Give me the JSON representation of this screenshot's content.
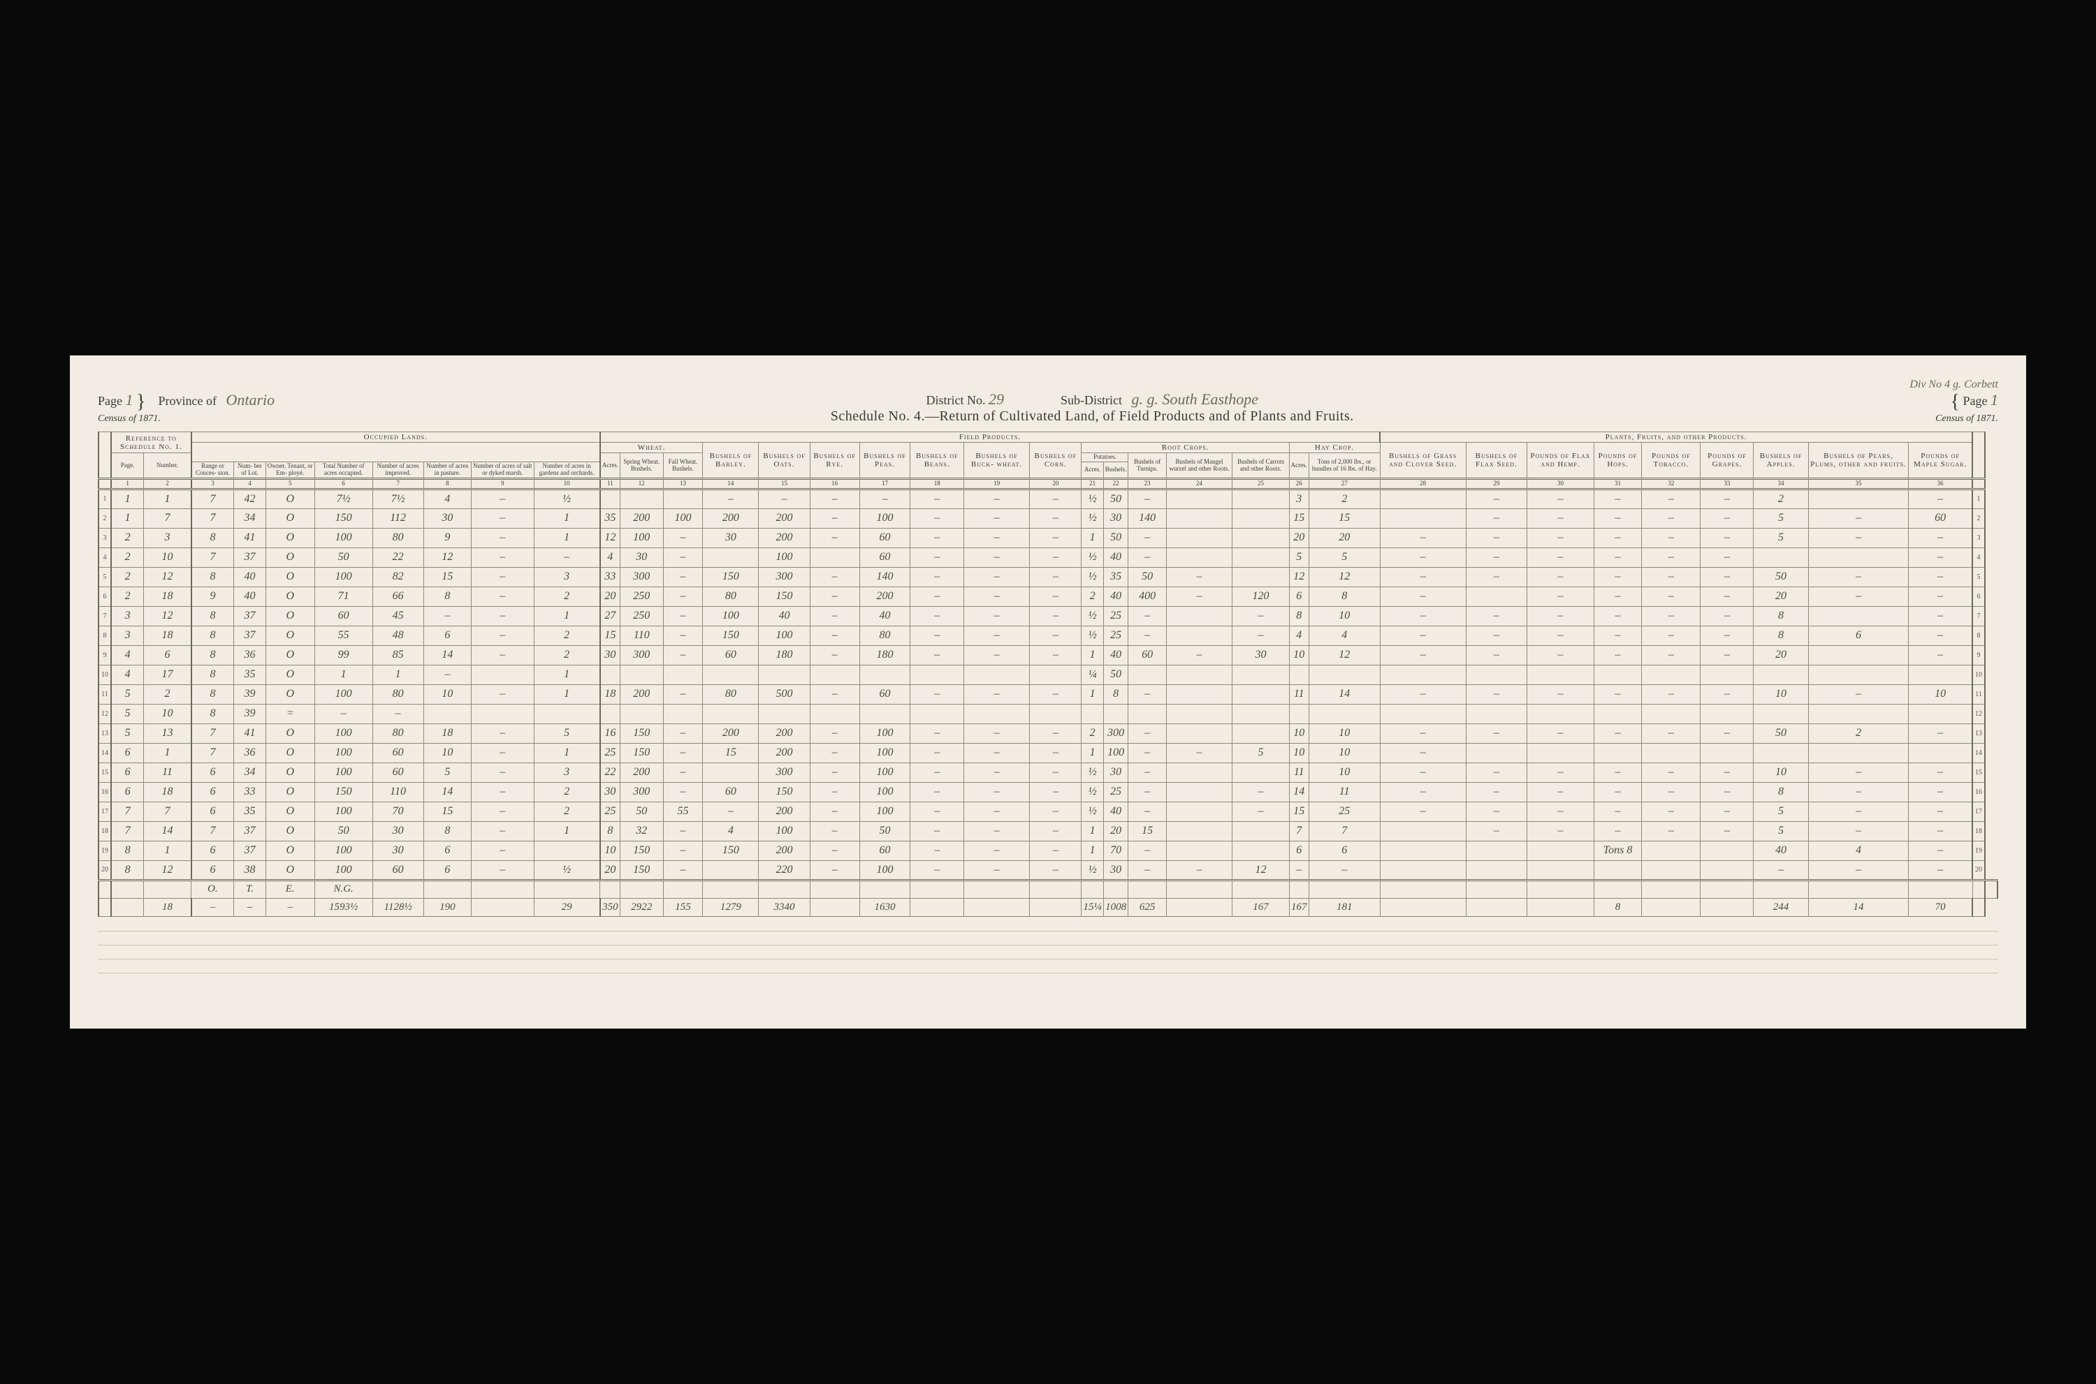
{
  "header": {
    "page_left_label": "Page",
    "page_left_value": "1",
    "census_left": "Census of 1871.",
    "province_label": "Province of",
    "province_value": "Ontario",
    "district_label": "District No.",
    "district_value": "29",
    "subdistrict_label": "Sub-District",
    "subdistrict_value": "g. g. South Easthope",
    "subdistrict_value2": "Div No 4  g. Corbett",
    "schedule_title": "Schedule No. 4.—Return of Cultivated Land, of Field Products and of Plants and Fruits.",
    "page_right_label": "Page",
    "page_right_value": "1",
    "census_right": "Census of 1871."
  },
  "group_headers": {
    "ref": "Reference to Schedule No. 1.",
    "occupied": "Occupied Lands.",
    "field": "Field Products.",
    "plants": "Plants, Fruits, and other Products.",
    "wheat": "Wheat.",
    "root": "Root Crops.",
    "hay": "Hay Crop.",
    "potatoes": "Potatoes."
  },
  "col_headers": [
    "Page.",
    "Number.",
    "Range or Conces- sion.",
    "Num- ber of Lot.",
    "Owner, Tenant, or Em- ployé.",
    "Total Number of acres occupied.",
    "Number of acres improved.",
    "Number of acres in pasture.",
    "Number of acres of salt or dyked marsh.",
    "Number of acres in gardens and orchards.",
    "Acres.",
    "Spring Wheat. Bushels.",
    "Fall Wheat. Bushels.",
    "Bushels of Barley.",
    "Bushels of Oats.",
    "Bushels of Rye.",
    "Bushels of Peas.",
    "Bushels of Beans.",
    "Bushels of Buck- wheat.",
    "Bushels of Corn.",
    "Acres.",
    "Bushels.",
    "Bushels of Turnips.",
    "Bushels of Mangel wurzel and other Roots.",
    "Bushels of Carrots and other Roots.",
    "Acres.",
    "Tons of 2,000 lbs., or bundles of 16 lbs. of Hay.",
    "Bushels of Grass and Clover Seed.",
    "Bushels of Flax Seed.",
    "Pounds of Flax and Hemp.",
    "Pounds of Hops.",
    "Pounds of Tobacco.",
    "Pounds of Grapes.",
    "Bushels of Apples.",
    "Bushels of Pears, Plums, other and fruits.",
    "Pounds of Maple Sugar."
  ],
  "col_numbers": [
    "1",
    "2",
    "3",
    "4",
    "5",
    "6",
    "7",
    "8",
    "9",
    "10",
    "11",
    "12",
    "13",
    "14",
    "15",
    "16",
    "17",
    "18",
    "19",
    "20",
    "21",
    "22",
    "23",
    "24",
    "25",
    "26",
    "27",
    "28",
    "29",
    "30",
    "31",
    "32",
    "33",
    "34",
    "35",
    "36"
  ],
  "rows": [
    [
      "1",
      "1",
      "7",
      "42",
      "O",
      "7½",
      "7½",
      "4",
      "–",
      "½",
      "",
      "",
      "",
      "–",
      "–",
      "–",
      "–",
      "–",
      "–",
      "–",
      "½",
      "50",
      "–",
      "",
      "",
      "3",
      "2",
      "",
      "–",
      "–",
      "–",
      "–",
      "–",
      "2",
      "",
      "–"
    ],
    [
      "1",
      "7",
      "7",
      "34",
      "O",
      "150",
      "112",
      "30",
      "–",
      "1",
      "35",
      "200",
      "100",
      "200",
      "200",
      "–",
      "100",
      "–",
      "–",
      "–",
      "½",
      "30",
      "140",
      "",
      "",
      "15",
      "15",
      "",
      "–",
      "–",
      "–",
      "–",
      "–",
      "5",
      "–",
      "60"
    ],
    [
      "2",
      "3",
      "8",
      "41",
      "O",
      "100",
      "80",
      "9",
      "–",
      "1",
      "12",
      "100",
      "–",
      "30",
      "200",
      "–",
      "60",
      "–",
      "–",
      "–",
      "1",
      "50",
      "–",
      "",
      "",
      "20",
      "20",
      "–",
      "–",
      "–",
      "–",
      "–",
      "–",
      "5",
      "–",
      "–"
    ],
    [
      "2",
      "10",
      "7",
      "37",
      "O",
      "50",
      "22",
      "12",
      "–",
      "–",
      "4",
      "30",
      "–",
      "",
      "100",
      "",
      "60",
      "–",
      "–",
      "–",
      "½",
      "40",
      "–",
      "",
      "",
      "5",
      "5",
      "–",
      "–",
      "–",
      "–",
      "–",
      "–",
      "",
      "",
      "–"
    ],
    [
      "2",
      "12",
      "8",
      "40",
      "O",
      "100",
      "82",
      "15",
      "–",
      "3",
      "33",
      "300",
      "–",
      "150",
      "300",
      "–",
      "140",
      "–",
      "–",
      "–",
      "½",
      "35",
      "50",
      "–",
      "",
      "12",
      "12",
      "–",
      "–",
      "–",
      "–",
      "–",
      "–",
      "50",
      "–",
      "–"
    ],
    [
      "2",
      "18",
      "9",
      "40",
      "O",
      "71",
      "66",
      "8",
      "–",
      "2",
      "20",
      "250",
      "–",
      "80",
      "150",
      "–",
      "200",
      "–",
      "–",
      "–",
      "2",
      "40",
      "400",
      "–",
      "120",
      "6",
      "8",
      "–",
      "",
      "–",
      "–",
      "–",
      "–",
      "20",
      "–",
      "–"
    ],
    [
      "3",
      "12",
      "8",
      "37",
      "O",
      "60",
      "45",
      "–",
      "–",
      "1",
      "27",
      "250",
      "–",
      "100",
      "40",
      "–",
      "40",
      "–",
      "–",
      "–",
      "½",
      "25",
      "–",
      "",
      "–",
      "8",
      "10",
      "–",
      "–",
      "–",
      "–",
      "–",
      "–",
      "8",
      "",
      "–"
    ],
    [
      "3",
      "18",
      "8",
      "37",
      "O",
      "55",
      "48",
      "6",
      "–",
      "2",
      "15",
      "110",
      "–",
      "150",
      "100",
      "–",
      "80",
      "–",
      "–",
      "–",
      "½",
      "25",
      "–",
      "",
      "–",
      "4",
      "4",
      "–",
      "–",
      "–",
      "–",
      "–",
      "–",
      "8",
      "6",
      "–"
    ],
    [
      "4",
      "6",
      "8",
      "36",
      "O",
      "99",
      "85",
      "14",
      "–",
      "2",
      "30",
      "300",
      "–",
      "60",
      "180",
      "–",
      "180",
      "–",
      "–",
      "–",
      "1",
      "40",
      "60",
      "–",
      "30",
      "10",
      "12",
      "–",
      "–",
      "–",
      "–",
      "–",
      "–",
      "20",
      "",
      "–"
    ],
    [
      "4",
      "17",
      "8",
      "35",
      "O",
      "1",
      "1",
      "–",
      "",
      "1",
      "",
      "",
      "",
      "",
      "",
      "",
      "",
      "",
      "",
      "",
      "¼",
      "50",
      "",
      "",
      "",
      "",
      "",
      "",
      "",
      "",
      "",
      "",
      "",
      "",
      "",
      ""
    ],
    [
      "5",
      "2",
      "8",
      "39",
      "O",
      "100",
      "80",
      "10",
      "–",
      "1",
      "18",
      "200",
      "–",
      "80",
      "500",
      "–",
      "60",
      "–",
      "–",
      "–",
      "1",
      "8",
      "–",
      "",
      "",
      "11",
      "14",
      "–",
      "–",
      "–",
      "–",
      "–",
      "–",
      "10",
      "–",
      "10"
    ],
    [
      "5",
      "10",
      "8",
      "39",
      "=",
      "–",
      "–",
      "",
      "",
      "",
      "",
      "",
      "",
      "",
      "",
      "",
      "",
      "",
      "",
      "",
      "",
      "",
      "",
      "",
      "",
      "",
      "",
      "",
      "",
      "",
      "",
      "",
      "",
      "",
      "",
      ""
    ],
    [
      "5",
      "13",
      "7",
      "41",
      "O",
      "100",
      "80",
      "18",
      "–",
      "5",
      "16",
      "150",
      "–",
      "200",
      "200",
      "–",
      "100",
      "–",
      "–",
      "–",
      "2",
      "300",
      "–",
      "",
      "",
      "10",
      "10",
      "–",
      "–",
      "–",
      "–",
      "–",
      "–",
      "50",
      "2",
      "–"
    ],
    [
      "6",
      "1",
      "7",
      "36",
      "O",
      "100",
      "60",
      "10",
      "–",
      "1",
      "25",
      "150",
      "–",
      "15",
      "200",
      "–",
      "100",
      "–",
      "–",
      "–",
      "1",
      "100",
      "–",
      "–",
      "5",
      "10",
      "10",
      "–",
      "",
      "",
      "",
      "",
      "",
      "",
      "",
      ""
    ],
    [
      "6",
      "11",
      "6",
      "34",
      "O",
      "100",
      "60",
      "5",
      "–",
      "3",
      "22",
      "200",
      "–",
      "",
      "300",
      "–",
      "100",
      "–",
      "–",
      "–",
      "½",
      "30",
      "–",
      "",
      "",
      "11",
      "10",
      "–",
      "–",
      "–",
      "–",
      "–",
      "–",
      "10",
      "–",
      "–"
    ],
    [
      "6",
      "18",
      "6",
      "33",
      "O",
      "150",
      "110",
      "14",
      "–",
      "2",
      "30",
      "300",
      "–",
      "60",
      "150",
      "–",
      "100",
      "–",
      "–",
      "–",
      "½",
      "25",
      "–",
      "",
      "–",
      "14",
      "11",
      "–",
      "–",
      "–",
      "–",
      "–",
      "–",
      "8",
      "–",
      "–"
    ],
    [
      "7",
      "7",
      "6",
      "35",
      "O",
      "100",
      "70",
      "15",
      "–",
      "2",
      "25",
      "50",
      "55",
      "–",
      "200",
      "–",
      "100",
      "–",
      "–",
      "–",
      "½",
      "40",
      "–",
      "",
      "–",
      "15",
      "25",
      "–",
      "–",
      "–",
      "–",
      "–",
      "–",
      "5",
      "–",
      "–"
    ],
    [
      "7",
      "14",
      "7",
      "37",
      "O",
      "50",
      "30",
      "8",
      "–",
      "1",
      "8",
      "32",
      "–",
      "4",
      "100",
      "–",
      "50",
      "–",
      "–",
      "–",
      "1",
      "20",
      "15",
      "",
      "",
      "7",
      "7",
      "",
      "–",
      "–",
      "–",
      "–",
      "–",
      "5",
      "–",
      "–"
    ],
    [
      "8",
      "1",
      "6",
      "37",
      "O",
      "100",
      "30",
      "6",
      "–",
      "",
      "10",
      "150",
      "–",
      "150",
      "200",
      "–",
      "60",
      "–",
      "–",
      "–",
      "1",
      "70",
      "–",
      "",
      "",
      "6",
      "6",
      "",
      "",
      "",
      "Tons 8",
      "",
      "",
      "40",
      "4",
      "–"
    ],
    [
      "8",
      "12",
      "6",
      "38",
      "O",
      "100",
      "60",
      "6",
      "–",
      "½",
      "20",
      "150",
      "–",
      "",
      "220",
      "–",
      "100",
      "–",
      "–",
      "–",
      "½",
      "30",
      "–",
      "–",
      "12",
      "–",
      "–",
      "",
      "",
      "",
      "",
      "",
      "",
      "–",
      "–",
      "–"
    ]
  ],
  "totals_labels": [
    "O.",
    "T.",
    "E.",
    "N.G."
  ],
  "totals": [
    "18",
    "–",
    "–",
    "–",
    "1593½",
    "1128½",
    "190",
    "",
    "29",
    "350",
    "2922",
    "155",
    "1279",
    "3340",
    "",
    "1630",
    "",
    "",
    "",
    "15¼",
    "1008",
    "625",
    "",
    "167",
    "167",
    "181",
    "",
    "",
    "",
    "8",
    "",
    "",
    "244",
    "14",
    "70"
  ]
}
